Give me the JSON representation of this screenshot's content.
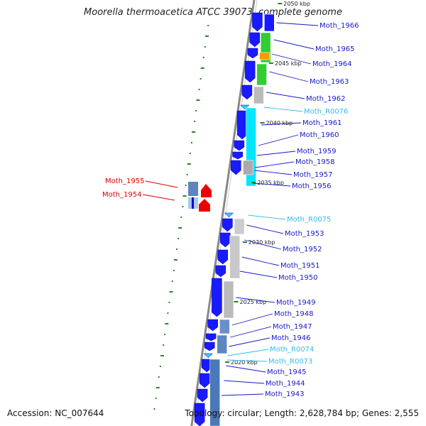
{
  "title": "Moorella thermoacetica ATCC 39073, complete genome",
  "accession": "Accession: NC_007644",
  "summary": "Topology: circular; Length: 2,628,784 bp; Genes: 2,555",
  "colors": {
    "cds": "#1a1aff",
    "rna": "#33ccff",
    "reverse_label": "#dd0000",
    "forward_label": "#1818c8",
    "rna_label": "#33bbee",
    "tick": "#228822",
    "backbone": "#888888"
  },
  "kbp_labels": [
    "2050 kbp",
    "2045 kbp",
    "2040 kbp",
    "2035 kbp",
    "2030 kbp",
    "2025 kbp",
    "2020 kbp"
  ],
  "genes": [
    {
      "name": "Moth_1966",
      "type": "cds"
    },
    {
      "name": "Moth_1965",
      "type": "cds"
    },
    {
      "name": "Moth_1964",
      "type": "cds"
    },
    {
      "name": "Moth_1963",
      "type": "cds"
    },
    {
      "name": "Moth_1962",
      "type": "cds"
    },
    {
      "name": "Moth_R0076",
      "type": "rna"
    },
    {
      "name": "Moth_1961",
      "type": "cds"
    },
    {
      "name": "Moth_1960",
      "type": "cds"
    },
    {
      "name": "Moth_1959",
      "type": "cds"
    },
    {
      "name": "Moth_1958",
      "type": "cds"
    },
    {
      "name": "Moth_1957",
      "type": "cds"
    },
    {
      "name": "Moth_1956",
      "type": "cds"
    },
    {
      "name": "Moth_R0075",
      "type": "rna"
    },
    {
      "name": "Moth_1953",
      "type": "cds"
    },
    {
      "name": "Moth_1952",
      "type": "cds"
    },
    {
      "name": "Moth_1951",
      "type": "cds"
    },
    {
      "name": "Moth_1950",
      "type": "cds"
    },
    {
      "name": "Moth_1949",
      "type": "cds"
    },
    {
      "name": "Moth_1948",
      "type": "cds"
    },
    {
      "name": "Moth_1947",
      "type": "cds"
    },
    {
      "name": "Moth_1946",
      "type": "cds"
    },
    {
      "name": "Moth_R0074",
      "type": "rna"
    },
    {
      "name": "Moth_R0073",
      "type": "rna"
    },
    {
      "name": "Moth_1945",
      "type": "cds"
    },
    {
      "name": "Moth_1944",
      "type": "cds"
    },
    {
      "name": "Moth_1943",
      "type": "cds"
    }
  ],
  "reverse_genes": [
    {
      "name": "Moth_1955"
    },
    {
      "name": "Moth_1954"
    }
  ]
}
